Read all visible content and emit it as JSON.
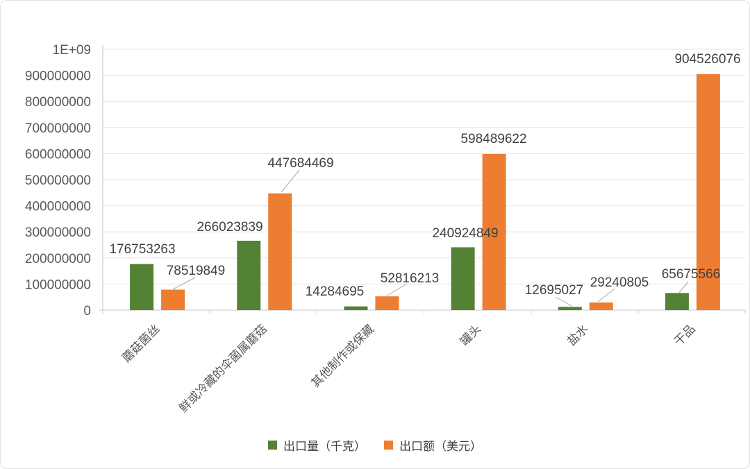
{
  "chart_data": {
    "type": "bar",
    "title": "",
    "categories": [
      "蘑菇菌丝",
      "鲜或冷藏的伞菌属蘑菇",
      "其他制作或保藏",
      "罐头",
      "盐水",
      "干品"
    ],
    "series": [
      {
        "name": "出口量（千克）",
        "color": "#548235",
        "values": [
          176753263,
          266023839,
          14284695,
          240924849,
          12695027,
          65675566
        ]
      },
      {
        "name": "出口额（美元）",
        "color": "#ED7D31",
        "values": [
          78519849,
          447684469,
          52816213,
          598489622,
          29240805,
          904526076
        ]
      }
    ],
    "y_axis": {
      "min": 0,
      "max": 1000000000,
      "tick_step": 100000000,
      "tick_labels_top_to_bottom": [
        "1E+09",
        "900000000",
        "800000000",
        "700000000",
        "600000000",
        "500000000",
        "400000000",
        "300000000",
        "200000000",
        "100000000",
        "0"
      ],
      "grid": true
    },
    "x_axis": {
      "label_rotation_deg": -45
    },
    "legend_position": "bottom",
    "data_labels": true
  },
  "colors": {
    "series_quantity": "#548235",
    "series_value": "#ED7D31",
    "grid_line": "#E4E4E4",
    "axis_line": "#C6C6C6",
    "axis_text": "#595959",
    "category_text": "#595959",
    "data_label_text": "#404040",
    "leader_line": "#A6A6A6",
    "page_border": "#E0E0E0",
    "background": "#FFFFFF"
  }
}
